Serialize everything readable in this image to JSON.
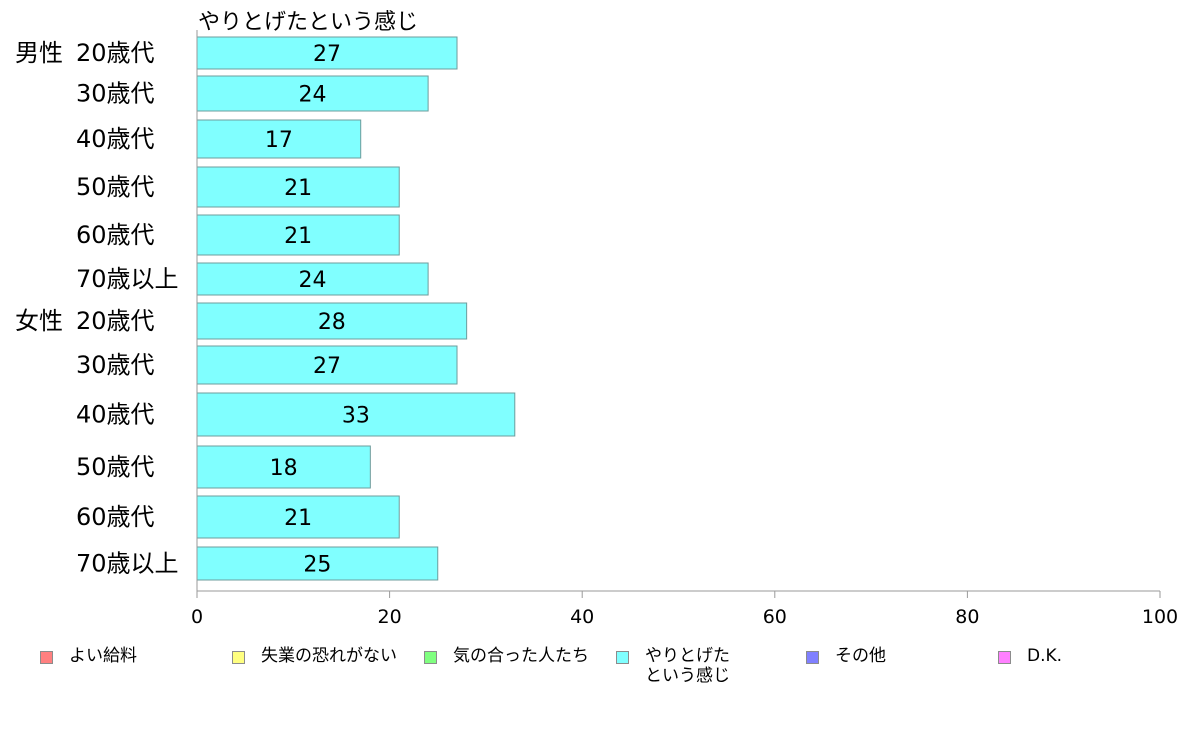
{
  "chart_data": {
    "type": "bar",
    "orientation": "horizontal",
    "title": "やりとげたという感じ",
    "groups": [
      {
        "label": "男性",
        "categories": [
          "20歳代",
          "30歳代",
          "40歳代",
          "50歳代",
          "60歳代",
          "70歳以上"
        ]
      },
      {
        "label": "女性",
        "categories": [
          "20歳代",
          "30歳代",
          "40歳代",
          "50歳代",
          "60歳代",
          "70歳以上"
        ]
      }
    ],
    "categories": [
      "20歳代",
      "30歳代",
      "40歳代",
      "50歳代",
      "60歳代",
      "70歳以上",
      "20歳代",
      "30歳代",
      "40歳代",
      "50歳代",
      "60歳代",
      "70歳以上"
    ],
    "series": [
      {
        "name": "やりとげた\nという感じ",
        "color": "#80ffff",
        "values": [
          27,
          24,
          17,
          21,
          21,
          24,
          28,
          27,
          33,
          18,
          21,
          25
        ]
      }
    ],
    "xlim": [
      0,
      100
    ],
    "xticks": [
      0,
      20,
      40,
      60,
      80,
      100
    ],
    "legend_position": "bottom",
    "grid": false
  },
  "legend": [
    {
      "label": "よい給料",
      "color": "#ff8080"
    },
    {
      "label": "失業の恐れがない",
      "color": "#ffff80"
    },
    {
      "label": "気の合った人たち",
      "color": "#80ff80"
    },
    {
      "label": "やりとげた\nという感じ",
      "color": "#80ffff"
    },
    {
      "label": "その他",
      "color": "#8080ff"
    },
    {
      "label": "D.K.",
      "color": "#ff80ff"
    }
  ],
  "colors": {
    "bar_border": "#6e9c9c",
    "axis": "#9a9a9a"
  }
}
